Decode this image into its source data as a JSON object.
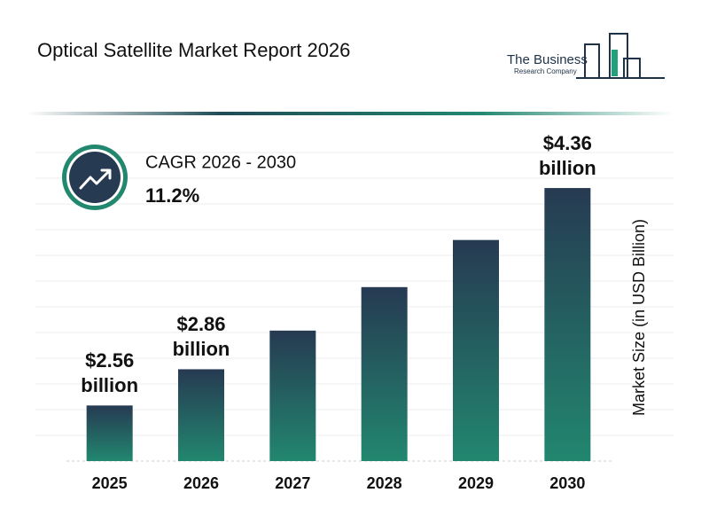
{
  "header": {
    "title": "Optical Satellite Market Report 2026",
    "logo_line1": "The Business",
    "logo_line2": "Research Company"
  },
  "cagr": {
    "label": "CAGR 2026 - 2030",
    "value": "11.2%"
  },
  "chart_data": {
    "type": "bar",
    "categories": [
      "2025",
      "2026",
      "2027",
      "2028",
      "2029",
      "2030"
    ],
    "values": [
      2.56,
      2.86,
      3.18,
      3.54,
      3.93,
      4.36
    ],
    "value_labels": [
      "$2.56 billion",
      "$2.86 billion",
      null,
      null,
      null,
      "$4.36 billion"
    ],
    "gradient": [
      "#263a52",
      "#22876f"
    ],
    "ylim": [
      2.1,
      4.5
    ],
    "y_label": "Market Size (in USD Billion)"
  }
}
